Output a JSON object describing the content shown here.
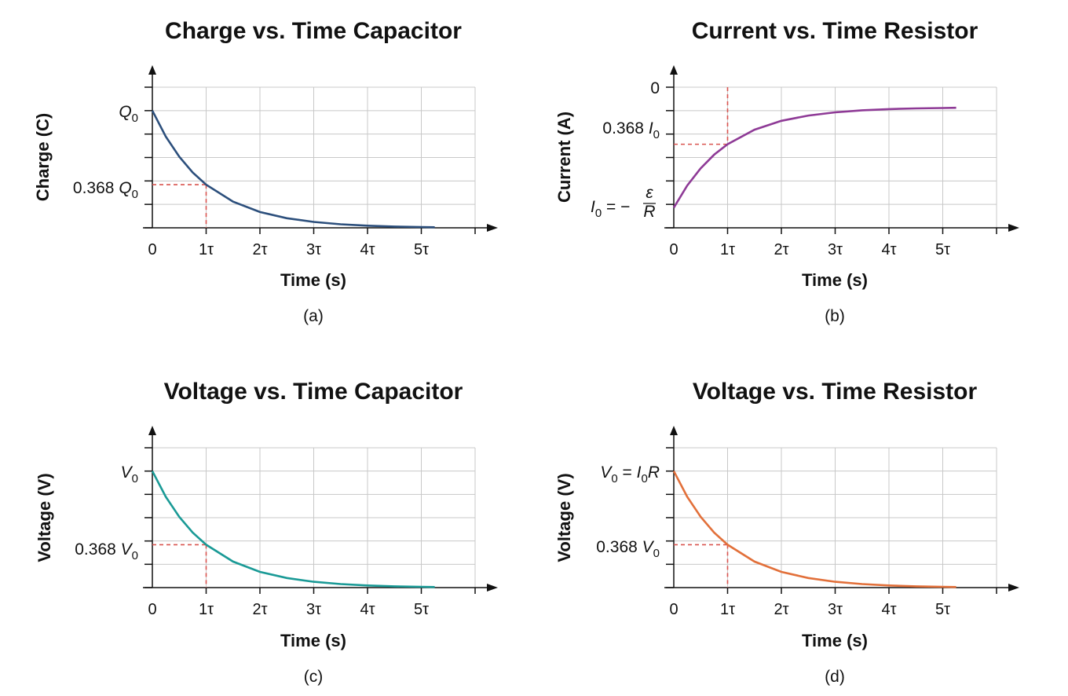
{
  "chart_data": [
    {
      "type": "line",
      "title": "Charge vs. Time Capacitor",
      "xlabel": "Time (s)",
      "ylabel": "Charge (C)",
      "caption": "(a)",
      "x_ticks": [
        "0",
        "1τ",
        "2τ",
        "3τ",
        "4τ",
        "5τ"
      ],
      "y_labels": [
        {
          "value": 1.0,
          "text": "Q0"
        },
        {
          "value": 0.368,
          "text": "0.368 Q0"
        }
      ],
      "series": [
        {
          "x": [
            0,
            0.25,
            0.5,
            0.75,
            1,
            1.5,
            2,
            2.5,
            3,
            3.5,
            4,
            4.5,
            5,
            5.25
          ],
          "y": [
            1.0,
            0.779,
            0.607,
            0.472,
            0.368,
            0.223,
            0.135,
            0.082,
            0.05,
            0.03,
            0.018,
            0.011,
            0.007,
            0.005
          ]
        }
      ],
      "guide": {
        "x": 1,
        "y": 0.368
      },
      "xlim": [
        0,
        6
      ],
      "ylim": [
        0,
        1.2
      ],
      "color": "#2c4f7c"
    },
    {
      "type": "line",
      "title": "Current vs. Time Resistor",
      "xlabel": "Time (s)",
      "ylabel": "Current (A)",
      "caption": "(b)",
      "x_ticks": [
        "0",
        "1τ",
        "2τ",
        "3τ",
        "4τ",
        "5τ"
      ],
      "y_labels": [
        {
          "value": 0,
          "text": "0"
        },
        {
          "value": -0.368,
          "text": "0.368 I0"
        },
        {
          "value": -1.0,
          "text": "I0 = −ε/R"
        }
      ],
      "series": [
        {
          "x": [
            0,
            0.25,
            0.5,
            0.75,
            1,
            1.5,
            2,
            2.5,
            3,
            3.5,
            4,
            4.5,
            5,
            5.25
          ],
          "y": [
            -1.0,
            -0.779,
            -0.607,
            -0.472,
            -0.368,
            -0.223,
            -0.135,
            -0.082,
            -0.05,
            -0.03,
            -0.018,
            -0.011,
            -0.007,
            -0.005
          ]
        }
      ],
      "guide": {
        "x": 1,
        "y": -0.368
      },
      "xlim": [
        0,
        6
      ],
      "ylim": [
        -1.2,
        0.2
      ],
      "color": "#8e3a96"
    },
    {
      "type": "line",
      "title": "Voltage vs. Time Capacitor",
      "xlabel": "Time (s)",
      "ylabel": "Voltage (V)",
      "caption": "(c)",
      "x_ticks": [
        "0",
        "1τ",
        "2τ",
        "3τ",
        "4τ",
        "5τ"
      ],
      "y_labels": [
        {
          "value": 1.0,
          "text": "V0"
        },
        {
          "value": 0.368,
          "text": "0.368 V0"
        }
      ],
      "series": [
        {
          "x": [
            0,
            0.25,
            0.5,
            0.75,
            1,
            1.5,
            2,
            2.5,
            3,
            3.5,
            4,
            4.5,
            5,
            5.25
          ],
          "y": [
            1.0,
            0.779,
            0.607,
            0.472,
            0.368,
            0.223,
            0.135,
            0.082,
            0.05,
            0.03,
            0.018,
            0.011,
            0.007,
            0.005
          ]
        }
      ],
      "guide": {
        "x": 1,
        "y": 0.368
      },
      "xlim": [
        0,
        6
      ],
      "ylim": [
        0,
        1.2
      ],
      "color": "#1a9a96"
    },
    {
      "type": "line",
      "title": "Voltage vs. Time Resistor",
      "xlabel": "Time (s)",
      "ylabel": "Voltage (V)",
      "caption": "(d)",
      "x_ticks": [
        "0",
        "1τ",
        "2τ",
        "3τ",
        "4τ",
        "5τ"
      ],
      "y_labels": [
        {
          "value": 1.0,
          "text": "V0 = I0R"
        },
        {
          "value": 0.368,
          "text": "0.368 V0"
        }
      ],
      "series": [
        {
          "x": [
            0,
            0.25,
            0.5,
            0.75,
            1,
            1.5,
            2,
            2.5,
            3,
            3.5,
            4,
            4.5,
            5,
            5.25
          ],
          "y": [
            1.0,
            0.779,
            0.607,
            0.472,
            0.368,
            0.223,
            0.135,
            0.082,
            0.05,
            0.03,
            0.018,
            0.011,
            0.007,
            0.005
          ]
        }
      ],
      "guide": {
        "x": 1,
        "y": 0.368
      },
      "xlim": [
        0,
        6
      ],
      "ylim": [
        0,
        1.2
      ],
      "color": "#e2703a"
    }
  ]
}
